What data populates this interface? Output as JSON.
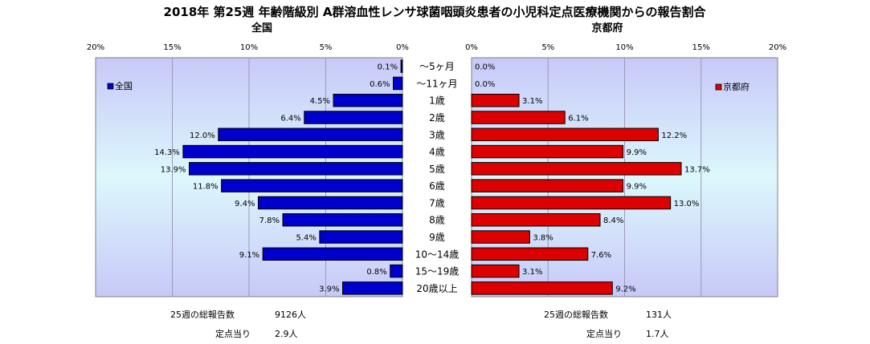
{
  "chart_data": {
    "type": "bar",
    "title": "2018年 第25週 年齢階級別 A群溶血性レンサ球菌咽頭炎患者の小児科定点医療機関からの報告割合",
    "categories": [
      "～5ヶ月",
      "～11ヶ月",
      "1歳",
      "2歳",
      "3歳",
      "4歳",
      "5歳",
      "6歳",
      "7歳",
      "8歳",
      "9歳",
      "10～14歳",
      "15～19歳",
      "20歳以上"
    ],
    "ticks": [
      "0%",
      "5%",
      "10%",
      "15%",
      "20%"
    ],
    "xlim": [
      0,
      20
    ],
    "grid": true,
    "series": [
      {
        "name": "全国",
        "color": "#0000cc",
        "panel": "left",
        "legend": "top-left",
        "values": [
          0.1,
          0.6,
          4.5,
          6.4,
          12.0,
          14.3,
          13.9,
          11.8,
          9.4,
          7.8,
          5.4,
          9.1,
          0.8,
          3.9
        ],
        "labels": [
          "0.1%",
          "0.6%",
          "4.5%",
          "6.4%",
          "12.0%",
          "14.3%",
          "13.9%",
          "11.8%",
          "9.4%",
          "7.8%",
          "5.4%",
          "9.1%",
          "0.8%",
          "3.9%"
        ]
      },
      {
        "name": "京都府",
        "color": "#dd0000",
        "panel": "right",
        "legend": "top-right",
        "values": [
          0.0,
          0.0,
          3.1,
          6.1,
          12.2,
          9.9,
          13.7,
          9.9,
          13.0,
          8.4,
          3.8,
          7.6,
          3.1,
          9.2
        ],
        "labels": [
          "0.0%",
          "0.0%",
          "3.1%",
          "6.1%",
          "12.2%",
          "9.9%",
          "13.7%",
          "9.9%",
          "13.0%",
          "8.4%",
          "3.8%",
          "7.6%",
          "3.1%",
          "9.2%"
        ]
      }
    ]
  },
  "footer": {
    "left": {
      "total_label": "25週の総報告数",
      "total_value": "9126人",
      "per_label": "定点当り",
      "per_value": "2.9人"
    },
    "right": {
      "total_label": "25週の総報告数",
      "total_value": "131人",
      "per_label": "定点当り",
      "per_value": "1.7人"
    }
  }
}
